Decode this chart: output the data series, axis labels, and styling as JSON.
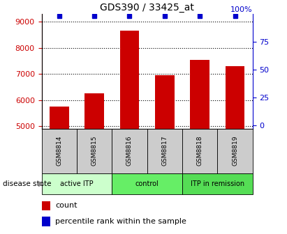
{
  "title": "GDS390 / 33425_at",
  "samples": [
    "GSM8814",
    "GSM8815",
    "GSM8816",
    "GSM8817",
    "GSM8818",
    "GSM8819"
  ],
  "counts": [
    5750,
    6250,
    8650,
    6950,
    7550,
    7300
  ],
  "percentile_ranks": [
    98,
    98,
    98,
    98,
    98,
    98
  ],
  "ylim_left": [
    4900,
    9300
  ],
  "ylim_right": [
    -3,
    100
  ],
  "yticks_left": [
    5000,
    6000,
    7000,
    8000,
    9000
  ],
  "yticks_right": [
    0,
    25,
    50,
    75
  ],
  "right_top_label": "100%",
  "groups": [
    {
      "label": "active ITP",
      "indices": [
        0,
        1
      ],
      "color": "#ccffcc"
    },
    {
      "label": "control",
      "indices": [
        2,
        3
      ],
      "color": "#66ee66"
    },
    {
      "label": "ITP in remission",
      "indices": [
        4,
        5
      ],
      "color": "#55dd55"
    }
  ],
  "bar_color": "#cc0000",
  "dot_color": "#0000cc",
  "bar_width": 0.55,
  "background_color": "#ffffff",
  "sample_box_color": "#cccccc",
  "grid_color": "black",
  "title_fontsize": 10,
  "axis_fontsize": 8,
  "tick_fontsize": 8,
  "legend_fontsize": 8
}
